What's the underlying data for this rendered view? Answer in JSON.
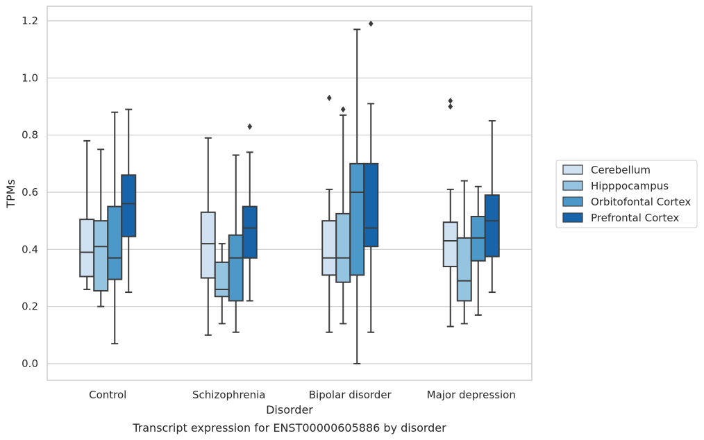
{
  "chart_data": {
    "type": "box",
    "title": "",
    "caption": "Transcript expression for ENST00000605886 by disorder",
    "xlabel": "Disorder",
    "ylabel": "TPMs",
    "ylim": [
      -0.06,
      1.25
    ],
    "yticks": [
      "0.0",
      "0.2",
      "0.4",
      "0.6",
      "0.8",
      "1.0",
      "1.2"
    ],
    "grid": true,
    "legend_position": "right",
    "categories": [
      "Control",
      "Schizophrenia",
      "Bipolar disorder",
      "Major depression"
    ],
    "series": [
      {
        "name": "Cerebellum",
        "color": "#d0e1f2",
        "boxes": [
          {
            "whisker_low": 0.26,
            "q1": 0.305,
            "median": 0.39,
            "q3": 0.505,
            "whisker_high": 0.78,
            "outliers": []
          },
          {
            "whisker_low": 0.1,
            "q1": 0.3,
            "median": 0.42,
            "q3": 0.53,
            "whisker_high": 0.79,
            "outliers": []
          },
          {
            "whisker_low": 0.11,
            "q1": 0.31,
            "median": 0.37,
            "q3": 0.5,
            "whisker_high": 0.61,
            "outliers": [
              0.93
            ]
          },
          {
            "whisker_low": 0.13,
            "q1": 0.34,
            "median": 0.43,
            "q3": 0.495,
            "whisker_high": 0.61,
            "outliers": [
              0.9,
              0.92
            ]
          }
        ]
      },
      {
        "name": "Hipppocampus",
        "color": "#94c4df",
        "boxes": [
          {
            "whisker_low": 0.2,
            "q1": 0.255,
            "median": 0.41,
            "q3": 0.5,
            "whisker_high": 0.75,
            "outliers": []
          },
          {
            "whisker_low": 0.14,
            "q1": 0.235,
            "median": 0.26,
            "q3": 0.355,
            "whisker_high": 0.42,
            "outliers": []
          },
          {
            "whisker_low": 0.14,
            "q1": 0.285,
            "median": 0.37,
            "q3": 0.525,
            "whisker_high": 0.87,
            "outliers": [
              0.89
            ]
          },
          {
            "whisker_low": 0.14,
            "q1": 0.22,
            "median": 0.29,
            "q3": 0.44,
            "whisker_high": 0.64,
            "outliers": []
          }
        ]
      },
      {
        "name": "Orbitofontal Cortex",
        "color": "#4b98c9",
        "boxes": [
          {
            "whisker_low": 0.07,
            "q1": 0.295,
            "median": 0.37,
            "q3": 0.55,
            "whisker_high": 0.88,
            "outliers": []
          },
          {
            "whisker_low": 0.11,
            "q1": 0.22,
            "median": 0.37,
            "q3": 0.45,
            "whisker_high": 0.73,
            "outliers": []
          },
          {
            "whisker_low": 0.0,
            "q1": 0.31,
            "median": 0.6,
            "q3": 0.7,
            "whisker_high": 1.17,
            "outliers": []
          },
          {
            "whisker_low": 0.17,
            "q1": 0.36,
            "median": 0.44,
            "q3": 0.515,
            "whisker_high": 0.62,
            "outliers": []
          }
        ]
      },
      {
        "name": "Prefrontal Cortex",
        "color": "#1764ab",
        "boxes": [
          {
            "whisker_low": 0.25,
            "q1": 0.445,
            "median": 0.56,
            "q3": 0.66,
            "whisker_high": 0.89,
            "outliers": []
          },
          {
            "whisker_low": 0.22,
            "q1": 0.37,
            "median": 0.475,
            "q3": 0.55,
            "whisker_high": 0.74,
            "outliers": [
              0.83
            ]
          },
          {
            "whisker_low": 0.11,
            "q1": 0.41,
            "median": 0.475,
            "q3": 0.7,
            "whisker_high": 0.91,
            "outliers": [
              1.19
            ]
          },
          {
            "whisker_low": 0.25,
            "q1": 0.375,
            "median": 0.5,
            "q3": 0.59,
            "whisker_high": 0.85,
            "outliers": []
          }
        ]
      }
    ]
  }
}
